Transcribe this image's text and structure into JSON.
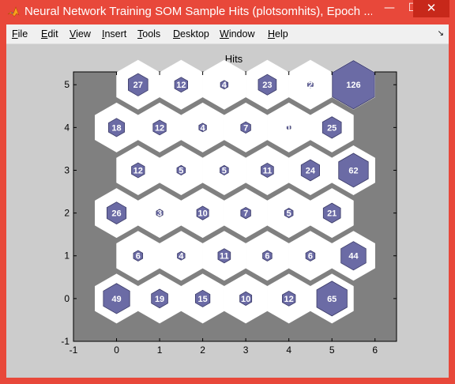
{
  "window": {
    "title": "Neural Network Training SOM Sample Hits (plotsomhits), Epoch ...",
    "minimize_glyph": "—",
    "maximize_glyph": "☐",
    "close_glyph": "✕",
    "icon": "matlab-icon"
  },
  "menubar": {
    "items": [
      {
        "label": "File",
        "accel": "F"
      },
      {
        "label": "Edit",
        "accel": "E"
      },
      {
        "label": "View",
        "accel": "V"
      },
      {
        "label": "Insert",
        "accel": "I"
      },
      {
        "label": "Tools",
        "accel": "T"
      },
      {
        "label": "Desktop",
        "accel": "D"
      },
      {
        "label": "Window",
        "accel": "W"
      },
      {
        "label": "Help",
        "accel": "H"
      }
    ],
    "dock_icon": "dock-arrow-icon"
  },
  "colors": {
    "plot_background": "#808080",
    "hex_fill": "#ffffff",
    "hit_fill": "#6b6ba5",
    "hit_text": "#ffffff",
    "figure_background": "#cccccc"
  },
  "chart_data": {
    "type": "hexagonal-hits",
    "title": "Hits",
    "xlabel": "",
    "ylabel": "",
    "xlim": [
      -1,
      6.5
    ],
    "ylim": [
      -1,
      5.3
    ],
    "xticks": [
      -1,
      0,
      1,
      2,
      3,
      4,
      5,
      6
    ],
    "yticks": [
      -1,
      0,
      1,
      2,
      3,
      4,
      5
    ],
    "max_hits": 126,
    "grid_columns": 6,
    "grid_rows": 6,
    "rows": [
      {
        "y": 0,
        "x_start": 0,
        "hits": [
          49,
          19,
          15,
          10,
          12,
          65
        ]
      },
      {
        "y": 1,
        "x_start": 0.5,
        "hits": [
          6,
          4,
          11,
          6,
          6,
          44
        ]
      },
      {
        "y": 2,
        "x_start": 0,
        "hits": [
          26,
          3,
          10,
          7,
          5,
          21
        ]
      },
      {
        "y": 3,
        "x_start": 0.5,
        "hits": [
          12,
          5,
          5,
          11,
          24,
          62
        ]
      },
      {
        "y": 4,
        "x_start": 0,
        "hits": [
          18,
          12,
          4,
          7,
          1,
          25
        ]
      },
      {
        "y": 5,
        "x_start": 0.5,
        "hits": [
          27,
          12,
          4,
          23,
          2,
          126
        ]
      }
    ]
  }
}
